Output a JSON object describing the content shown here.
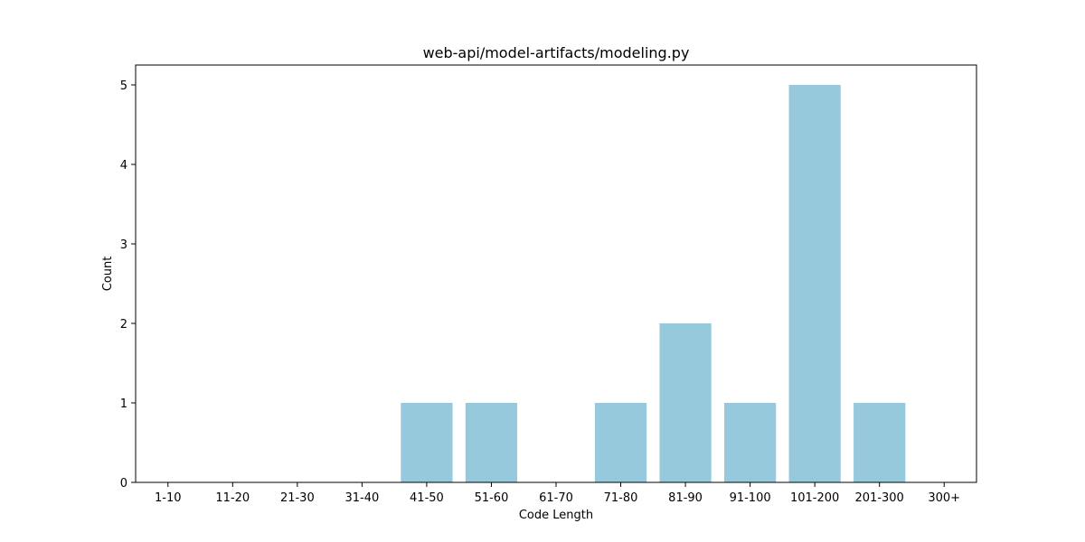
{
  "chart_data": {
    "type": "bar",
    "title": "web-api/model-artifacts/modeling.py",
    "xlabel": "Code Length",
    "ylabel": "Count",
    "categories": [
      "1-10",
      "11-20",
      "21-30",
      "31-40",
      "41-50",
      "51-60",
      "61-70",
      "71-80",
      "81-90",
      "91-100",
      "101-200",
      "201-300",
      "300+"
    ],
    "values": [
      0,
      0,
      0,
      0,
      1,
      1,
      0,
      1,
      2,
      1,
      5,
      1,
      0
    ],
    "ylim": [
      0,
      5.25
    ],
    "yticks": [
      0,
      1,
      2,
      3,
      4,
      5
    ],
    "grid": false,
    "legend": "none",
    "bar_color": "#96c9dc",
    "axis_color": "#000000"
  }
}
